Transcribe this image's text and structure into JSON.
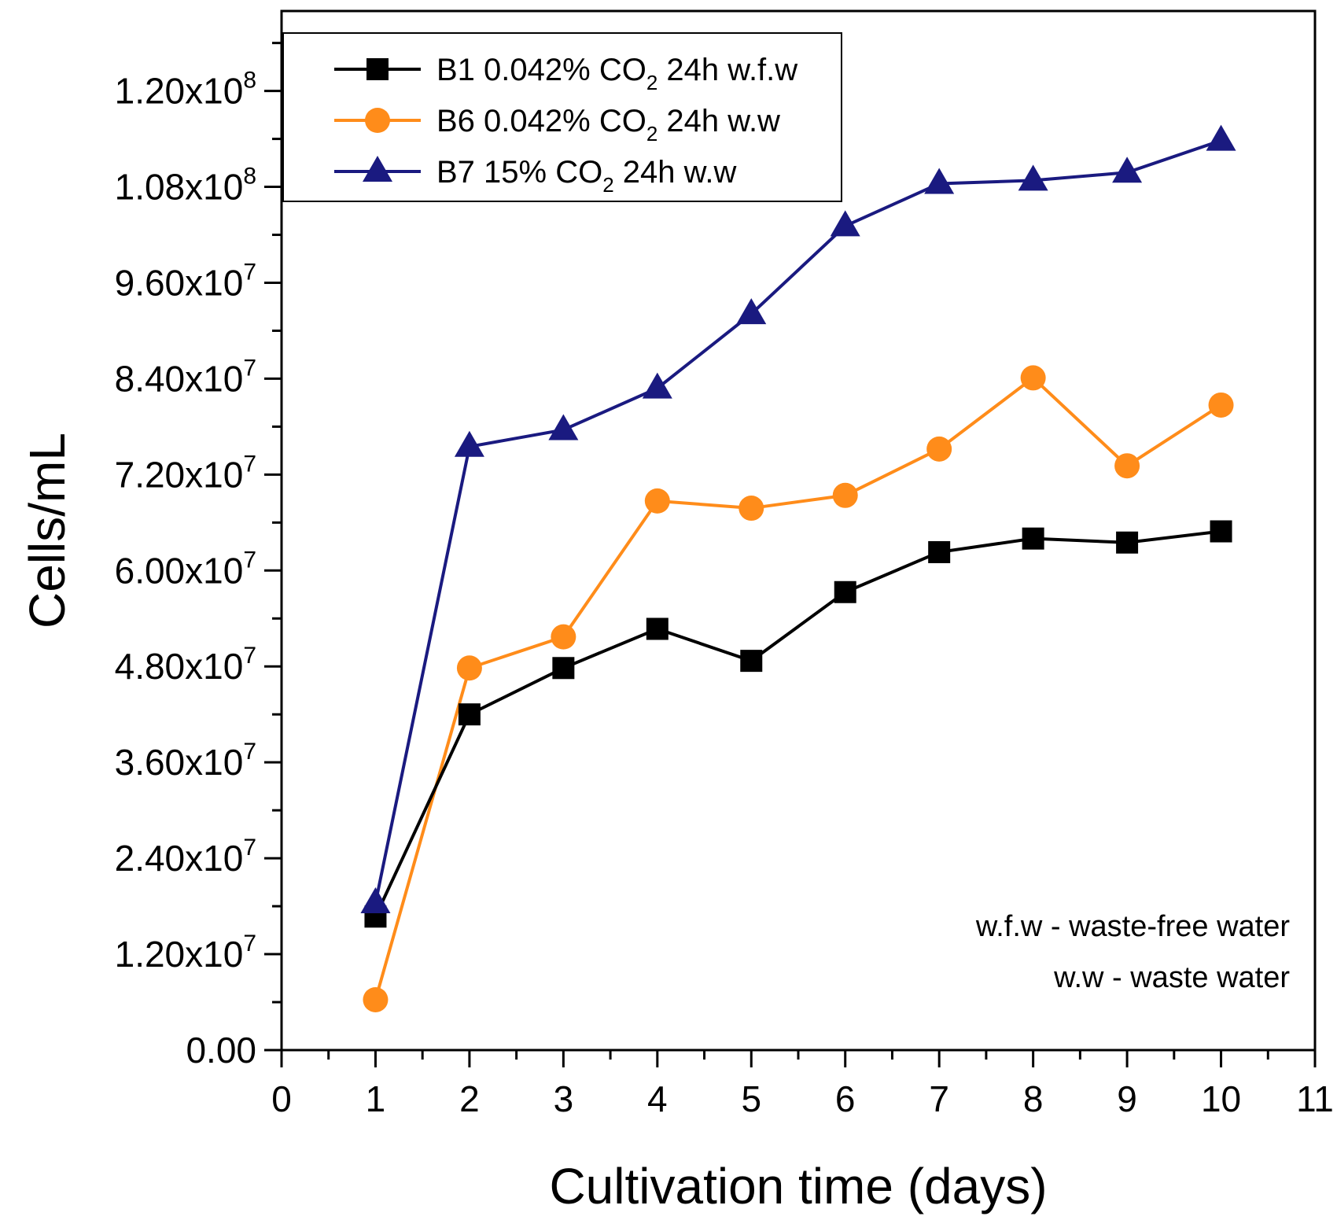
{
  "chart_data": {
    "type": "line",
    "xlabel": "Cultivation time (days)",
    "ylabel": "Cells/mL",
    "xlim": [
      0,
      11
    ],
    "ylim": [
      0,
      130000000
    ],
    "x_ticks": [
      "0",
      "1",
      "2",
      "3",
      "4",
      "5",
      "6",
      "7",
      "8",
      "9",
      "10",
      "11"
    ],
    "y_ticks": [
      {
        "value": 0,
        "mantissa": "0.00",
        "exp": ""
      },
      {
        "value": 12000000,
        "mantissa": "1.20x10",
        "exp": "7"
      },
      {
        "value": 24000000,
        "mantissa": "2.40x10",
        "exp": "7"
      },
      {
        "value": 36000000,
        "mantissa": "3.60x10",
        "exp": "7"
      },
      {
        "value": 48000000,
        "mantissa": "4.80x10",
        "exp": "7"
      },
      {
        "value": 60000000,
        "mantissa": "6.00x10",
        "exp": "7"
      },
      {
        "value": 72000000,
        "mantissa": "7.20x10",
        "exp": "7"
      },
      {
        "value": 84000000,
        "mantissa": "8.40x10",
        "exp": "7"
      },
      {
        "value": 96000000,
        "mantissa": "9.60x10",
        "exp": "7"
      },
      {
        "value": 108000000,
        "mantissa": "1.08x10",
        "exp": "8"
      },
      {
        "value": 120000000,
        "mantissa": "1.20x10",
        "exp": "8"
      }
    ],
    "x": [
      1,
      2,
      3,
      4,
      5,
      6,
      7,
      8,
      9,
      10
    ],
    "series": [
      {
        "name": "B1 0.042% CO2 24h w.f.w",
        "legend_parts": [
          "B1 0.042% CO",
          "2",
          " 24h w.f.w"
        ],
        "color": "#000000",
        "marker": "square",
        "values": [
          16700000,
          42000000,
          47800000,
          52700000,
          48700000,
          57300000,
          62300000,
          64000000,
          63500000,
          64900000
        ]
      },
      {
        "name": "B6 0.042% CO2 24h w.w",
        "legend_parts": [
          "B6 0.042% CO",
          "2",
          " 24h w.w"
        ],
        "color": "#ff8c1a",
        "marker": "circle",
        "values": [
          6300000,
          47800000,
          51700000,
          68700000,
          67800000,
          69400000,
          75200000,
          84100000,
          73100000,
          80700000
        ]
      },
      {
        "name": "B7 15% CO2 24h w.w",
        "legend_parts": [
          "B7 15% CO",
          "2",
          " 24h w.w"
        ],
        "color": "#1a1a80",
        "marker": "triangle",
        "values": [
          18400000,
          75500000,
          77600000,
          82800000,
          92100000,
          103100000,
          108400000,
          108800000,
          109800000,
          113800000
        ]
      }
    ],
    "annotations": [
      "w.f.w - waste-free water",
      "w.w - waste water"
    ],
    "grid": false,
    "legend_position": "top-left"
  }
}
